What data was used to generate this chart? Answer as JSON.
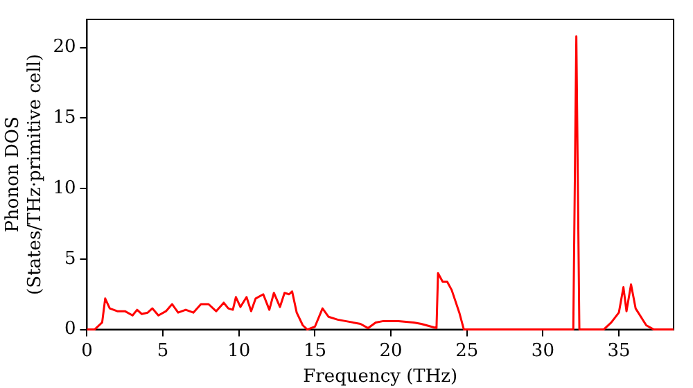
{
  "chart_data": {
    "type": "line",
    "xlabel": "Frequency (THz)",
    "ylabel": "Phonon DOS\n(States/THz·primitive cell)",
    "xlim": [
      0,
      38.6
    ],
    "ylim": [
      0,
      22
    ],
    "xticks": [
      0,
      5,
      10,
      15,
      20,
      25,
      30,
      35
    ],
    "yticks": [
      0,
      5,
      10,
      15,
      20
    ],
    "grid": false,
    "legend": false,
    "marker": "none",
    "line_style": "solid",
    "series": [
      {
        "color": "#ff0000",
        "x": [
          0,
          0.5,
          1.0,
          1.2,
          1.5,
          2,
          2.5,
          3,
          3.3,
          3.6,
          4,
          4.3,
          4.7,
          5.2,
          5.6,
          6,
          6.5,
          7,
          7.5,
          8,
          8.5,
          9,
          9.3,
          9.6,
          9.8,
          10.1,
          10.5,
          10.8,
          11.1,
          11.6,
          12,
          12.3,
          12.7,
          13,
          13.3,
          13.5,
          13.8,
          14.2,
          14.5,
          15,
          15.5,
          15.9,
          16.5,
          17,
          18,
          18.5,
          19,
          19.5,
          20.5,
          21.5,
          22,
          23,
          23.1,
          23.4,
          23.7,
          24,
          24.5,
          24.8,
          32,
          32.2,
          32.4,
          34,
          34.5,
          35,
          35.3,
          35.5,
          35.8,
          36.1,
          36.8,
          37.3,
          38.6
        ],
        "values": [
          0,
          0,
          0.5,
          2.2,
          1.5,
          1.3,
          1.3,
          1.0,
          1.4,
          1.1,
          1.2,
          1.5,
          1.0,
          1.3,
          1.8,
          1.2,
          1.4,
          1.2,
          1.8,
          1.8,
          1.3,
          1.9,
          1.5,
          1.4,
          2.3,
          1.6,
          2.3,
          1.3,
          2.2,
          2.5,
          1.4,
          2.6,
          1.6,
          2.6,
          2.5,
          2.7,
          1.2,
          0.3,
          0,
          0.2,
          1.5,
          0.9,
          0.7,
          0.6,
          0.4,
          0.1,
          0.5,
          0.6,
          0.6,
          0.5,
          0.4,
          0.1,
          4.0,
          3.4,
          3.4,
          2.8,
          1.2,
          0,
          0,
          20.8,
          0,
          0,
          0.5,
          1.2,
          3.0,
          1.3,
          3.2,
          1.5,
          0.3,
          0,
          0
        ]
      }
    ]
  }
}
